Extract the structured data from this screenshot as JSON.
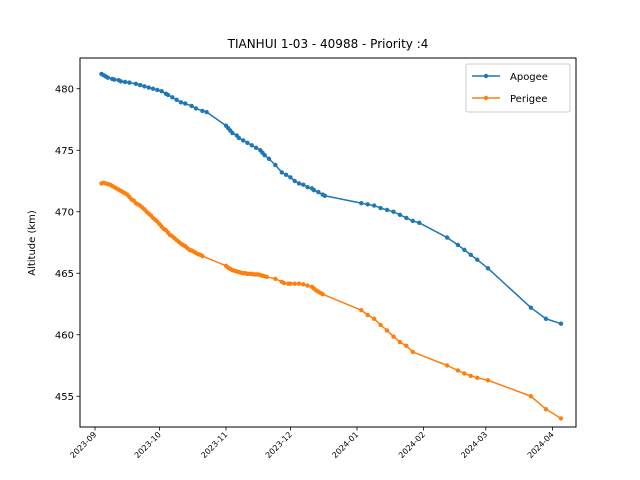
{
  "chart_data": {
    "type": "line",
    "title": "TIANHUI 1-03 - 40988 - Priority :4",
    "xlabel": "",
    "ylabel": "Altitude (km)",
    "xlim": [
      "2023-08-25",
      "2024-04-12"
    ],
    "ylim": [
      452.5,
      482.5
    ],
    "grid": false,
    "legend_position": "top-right",
    "yticks": [
      455,
      460,
      465,
      470,
      475,
      480
    ],
    "xticks": [
      "2023-09",
      "2023-10",
      "2023-11",
      "2023-12",
      "2024-01",
      "2024-02",
      "2024-03",
      "2024-04"
    ],
    "series": [
      {
        "name": "Apogee",
        "color": "#1f77b4",
        "points": [
          [
            "2023-09-04",
            481.2
          ],
          [
            "2023-09-05",
            481.1
          ],
          [
            "2023-09-06",
            481.0
          ],
          [
            "2023-09-07",
            480.9
          ],
          [
            "2023-09-09",
            480.8
          ],
          [
            "2023-09-10",
            480.75
          ],
          [
            "2023-09-12",
            480.7
          ],
          [
            "2023-09-13",
            480.6
          ],
          [
            "2023-09-15",
            480.55
          ],
          [
            "2023-09-17",
            480.5
          ],
          [
            "2023-09-20",
            480.4
          ],
          [
            "2023-09-22",
            480.3
          ],
          [
            "2023-09-24",
            480.2
          ],
          [
            "2023-09-26",
            480.1
          ],
          [
            "2023-09-28",
            480.0
          ],
          [
            "2023-09-30",
            479.9
          ],
          [
            "2023-10-02",
            479.8
          ],
          [
            "2023-10-04",
            479.6
          ],
          [
            "2023-10-05",
            479.5
          ],
          [
            "2023-10-07",
            479.3
          ],
          [
            "2023-10-09",
            479.1
          ],
          [
            "2023-10-11",
            478.9
          ],
          [
            "2023-10-13",
            478.8
          ],
          [
            "2023-10-16",
            478.6
          ],
          [
            "2023-10-18",
            478.4
          ],
          [
            "2023-10-21",
            478.2
          ],
          [
            "2023-10-23",
            478.1
          ],
          [
            "2023-11-01",
            477.0
          ],
          [
            "2023-11-02",
            476.8
          ],
          [
            "2023-11-03",
            476.6
          ],
          [
            "2023-11-04",
            476.4
          ],
          [
            "2023-11-06",
            476.2
          ],
          [
            "2023-11-07",
            476.0
          ],
          [
            "2023-11-09",
            475.8
          ],
          [
            "2023-11-11",
            475.6
          ],
          [
            "2023-11-13",
            475.4
          ],
          [
            "2023-11-15",
            475.2
          ],
          [
            "2023-11-17",
            475.0
          ],
          [
            "2023-11-18",
            474.8
          ],
          [
            "2023-11-19",
            474.6
          ],
          [
            "2023-11-21",
            474.3
          ],
          [
            "2023-11-24",
            473.8
          ],
          [
            "2023-11-27",
            473.2
          ],
          [
            "2023-11-29",
            473.0
          ],
          [
            "2023-12-01",
            472.8
          ],
          [
            "2023-12-03",
            472.5
          ],
          [
            "2023-12-05",
            472.3
          ],
          [
            "2023-12-07",
            472.2
          ],
          [
            "2023-12-09",
            472.0
          ],
          [
            "2023-12-11",
            471.9
          ],
          [
            "2023-12-12",
            471.75
          ],
          [
            "2023-12-14",
            471.6
          ],
          [
            "2023-12-16",
            471.4
          ],
          [
            "2023-12-17",
            471.3
          ],
          [
            "2024-01-03",
            470.7
          ],
          [
            "2024-01-06",
            470.6
          ],
          [
            "2024-01-09",
            470.5
          ],
          [
            "2024-01-12",
            470.3
          ],
          [
            "2024-01-15",
            470.15
          ],
          [
            "2024-01-18",
            470.0
          ],
          [
            "2024-01-21",
            469.75
          ],
          [
            "2024-01-24",
            469.5
          ],
          [
            "2024-01-27",
            469.25
          ],
          [
            "2024-01-30",
            469.1
          ],
          [
            "2024-02-12",
            467.9
          ],
          [
            "2024-02-17",
            467.3
          ],
          [
            "2024-02-20",
            466.9
          ],
          [
            "2024-02-23",
            466.5
          ],
          [
            "2024-02-26",
            466.1
          ],
          [
            "2024-03-02",
            465.4
          ],
          [
            "2024-03-22",
            462.2
          ],
          [
            "2024-03-29",
            461.3
          ],
          [
            "2024-04-05",
            460.9
          ]
        ]
      },
      {
        "name": "Perigee",
        "color": "#ff7f0e",
        "points": [
          [
            "2023-09-04",
            472.3
          ],
          [
            "2023-09-05",
            472.35
          ],
          [
            "2023-09-06",
            472.3
          ],
          [
            "2023-09-07",
            472.25
          ],
          [
            "2023-09-08",
            472.2
          ],
          [
            "2023-09-09",
            472.1
          ],
          [
            "2023-09-10",
            472.0
          ],
          [
            "2023-09-11",
            471.9
          ],
          [
            "2023-09-12",
            471.8
          ],
          [
            "2023-09-13",
            471.7
          ],
          [
            "2023-09-14",
            471.6
          ],
          [
            "2023-09-15",
            471.5
          ],
          [
            "2023-09-16",
            471.4
          ],
          [
            "2023-09-17",
            471.2
          ],
          [
            "2023-09-18",
            471.0
          ],
          [
            "2023-09-19",
            470.9
          ],
          [
            "2023-09-20",
            470.7
          ],
          [
            "2023-09-21",
            470.6
          ],
          [
            "2023-09-22",
            470.5
          ],
          [
            "2023-09-23",
            470.35
          ],
          [
            "2023-09-24",
            470.2
          ],
          [
            "2023-09-25",
            470.0
          ],
          [
            "2023-09-26",
            469.85
          ],
          [
            "2023-09-27",
            469.7
          ],
          [
            "2023-09-28",
            469.5
          ],
          [
            "2023-09-29",
            469.35
          ],
          [
            "2023-09-30",
            469.2
          ],
          [
            "2023-10-01",
            469.0
          ],
          [
            "2023-10-02",
            468.8
          ],
          [
            "2023-10-03",
            468.6
          ],
          [
            "2023-10-04",
            468.5
          ],
          [
            "2023-10-05",
            468.3
          ],
          [
            "2023-10-06",
            468.1
          ],
          [
            "2023-10-07",
            468.0
          ],
          [
            "2023-10-08",
            467.85
          ],
          [
            "2023-10-09",
            467.7
          ],
          [
            "2023-10-10",
            467.55
          ],
          [
            "2023-10-11",
            467.4
          ],
          [
            "2023-10-12",
            467.3
          ],
          [
            "2023-10-13",
            467.2
          ],
          [
            "2023-10-14",
            467.05
          ],
          [
            "2023-10-15",
            466.9
          ],
          [
            "2023-10-16",
            466.85
          ],
          [
            "2023-10-17",
            466.75
          ],
          [
            "2023-10-18",
            466.65
          ],
          [
            "2023-10-19",
            466.55
          ],
          [
            "2023-10-20",
            466.5
          ],
          [
            "2023-10-21",
            466.4
          ],
          [
            "2023-11-01",
            465.6
          ],
          [
            "2023-11-02",
            465.45
          ],
          [
            "2023-11-03",
            465.35
          ],
          [
            "2023-11-04",
            465.25
          ],
          [
            "2023-11-05",
            465.2
          ],
          [
            "2023-11-06",
            465.15
          ],
          [
            "2023-11-07",
            465.1
          ],
          [
            "2023-11-08",
            465.05
          ],
          [
            "2023-11-09",
            465.0
          ],
          [
            "2023-11-10",
            465.0
          ],
          [
            "2023-11-11",
            464.95
          ],
          [
            "2023-11-12",
            464.95
          ],
          [
            "2023-11-13",
            464.95
          ],
          [
            "2023-11-14",
            464.9
          ],
          [
            "2023-11-15",
            464.9
          ],
          [
            "2023-11-16",
            464.9
          ],
          [
            "2023-11-17",
            464.85
          ],
          [
            "2023-11-18",
            464.8
          ],
          [
            "2023-11-19",
            464.75
          ],
          [
            "2023-11-20",
            464.7
          ],
          [
            "2023-11-24",
            464.55
          ],
          [
            "2023-11-27",
            464.3
          ],
          [
            "2023-11-28",
            464.2
          ],
          [
            "2023-11-30",
            464.15
          ],
          [
            "2023-12-01",
            464.15
          ],
          [
            "2023-12-03",
            464.15
          ],
          [
            "2023-12-05",
            464.15
          ],
          [
            "2023-12-07",
            464.1
          ],
          [
            "2023-12-09",
            464.0
          ],
          [
            "2023-12-11",
            463.9
          ],
          [
            "2023-12-12",
            463.75
          ],
          [
            "2023-12-13",
            463.6
          ],
          [
            "2023-12-14",
            463.5
          ],
          [
            "2023-12-15",
            463.4
          ],
          [
            "2023-12-16",
            463.3
          ],
          [
            "2024-01-03",
            462.0
          ],
          [
            "2024-01-06",
            461.6
          ],
          [
            "2024-01-09",
            461.3
          ],
          [
            "2024-01-12",
            460.8
          ],
          [
            "2024-01-15",
            460.35
          ],
          [
            "2024-01-18",
            459.85
          ],
          [
            "2024-01-21",
            459.4
          ],
          [
            "2024-01-24",
            459.1
          ],
          [
            "2024-01-27",
            458.6
          ],
          [
            "2024-02-12",
            457.5
          ],
          [
            "2024-02-17",
            457.1
          ],
          [
            "2024-02-20",
            456.85
          ],
          [
            "2024-02-23",
            456.65
          ],
          [
            "2024-02-26",
            456.5
          ],
          [
            "2024-03-02",
            456.3
          ],
          [
            "2024-03-22",
            455.0
          ],
          [
            "2024-03-29",
            453.95
          ],
          [
            "2024-04-05",
            453.2
          ]
        ]
      }
    ]
  }
}
